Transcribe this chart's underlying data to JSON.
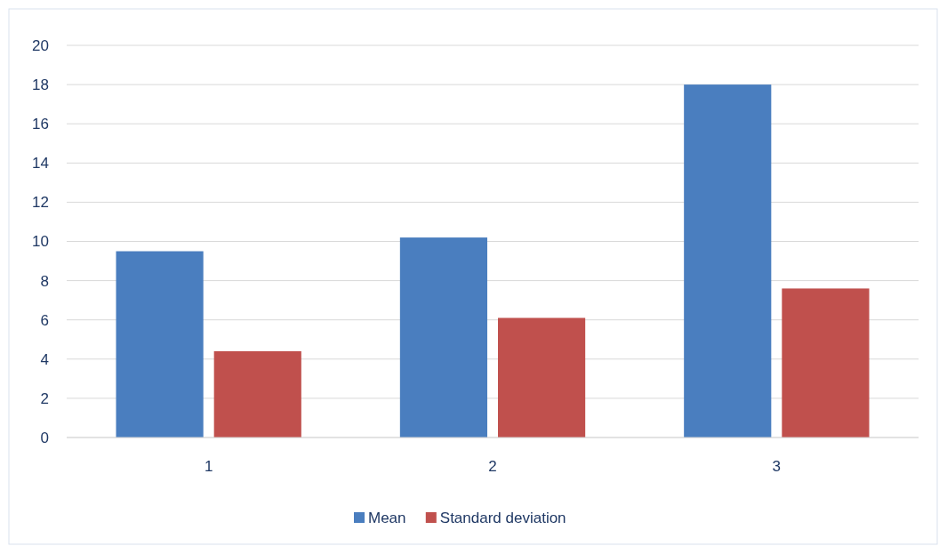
{
  "chart_data": {
    "type": "bar",
    "categories": [
      "1",
      "2",
      "3"
    ],
    "series": [
      {
        "name": "Mean",
        "color": "#4a7ebf",
        "values": [
          9.5,
          10.2,
          18
        ]
      },
      {
        "name": "Standard deviation",
        "color": "#c0504d",
        "values": [
          4.4,
          6.1,
          7.6
        ]
      }
    ],
    "ylim": [
      0,
      20
    ],
    "yticks": [
      0,
      2,
      4,
      6,
      8,
      10,
      12,
      14,
      16,
      18,
      20
    ],
    "grid": "y",
    "legend": "bottom"
  }
}
